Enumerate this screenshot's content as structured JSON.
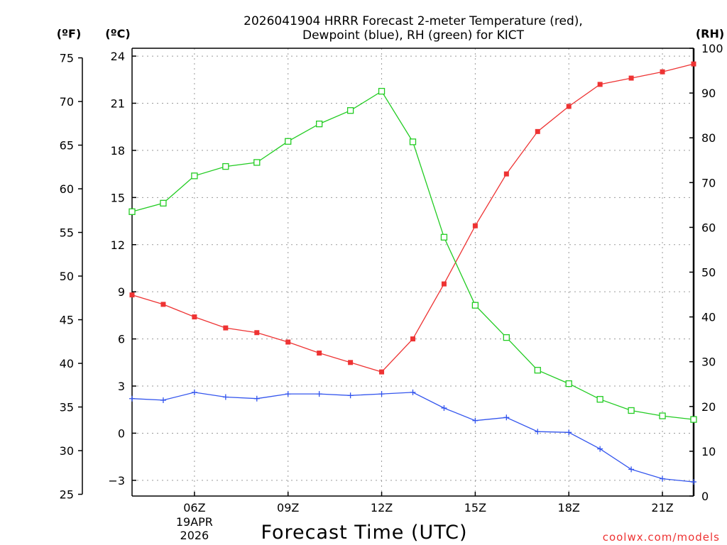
{
  "chart_data": {
    "type": "line",
    "title_lines": [
      "2026041904 HRRR Forecast 2-meter Temperature (red),",
      "Dewpoint (blue), RH (green) for KICT"
    ],
    "left_axis_f_label": "(ºF)",
    "left_axis_c_label": "(ºC)",
    "right_axis_label": "(RH)",
    "xlabel": "Forecast Time (UTC)",
    "watermark": "coolwx.com/models",
    "x_hours": [
      4,
      5,
      6,
      7,
      8,
      9,
      10,
      11,
      12,
      13,
      14,
      15,
      16,
      17,
      18,
      19,
      20,
      21,
      22
    ],
    "x_range": [
      4,
      22
    ],
    "x_ticks": [
      {
        "hour": 6,
        "label": "06Z"
      },
      {
        "hour": 9,
        "label": "09Z"
      },
      {
        "hour": 12,
        "label": "12Z"
      },
      {
        "hour": 15,
        "label": "15Z"
      },
      {
        "hour": 18,
        "label": "18Z"
      },
      {
        "hour": 21,
        "label": "21Z"
      }
    ],
    "date_label": [
      "19APR",
      "2026"
    ],
    "ylim_c": [
      -4,
      24.5
    ],
    "yticks_c": [
      "24",
      "21",
      "18",
      "15",
      "12",
      "9",
      "6",
      "3",
      "0",
      "−3"
    ],
    "yticks_c_values": [
      24,
      21,
      18,
      15,
      12,
      9,
      6,
      3,
      0,
      -3
    ],
    "yticks_f": [
      "75",
      "70",
      "65",
      "60",
      "55",
      "50",
      "45",
      "40",
      "35",
      "30",
      "25"
    ],
    "yticks_f_values": [
      75,
      70,
      65,
      60,
      55,
      50,
      45,
      40,
      35,
      30,
      25
    ],
    "ylim_rh": [
      0,
      100
    ],
    "yticks_rh": [
      "100",
      "90",
      "80",
      "70",
      "60",
      "50",
      "40",
      "30",
      "20",
      "10",
      "0"
    ],
    "yticks_rh_values": [
      100,
      90,
      80,
      70,
      60,
      50,
      40,
      30,
      20,
      10,
      0
    ],
    "series": [
      {
        "name": "Temperature",
        "color": "#ee3333",
        "units": "C",
        "marker": "filled-square",
        "values": [
          8.8,
          8.2,
          7.4,
          6.7,
          6.4,
          5.8,
          5.1,
          4.5,
          3.9,
          6.0,
          9.5,
          13.2,
          16.5,
          19.2,
          20.8,
          22.2,
          22.6,
          23.0,
          23.5
        ]
      },
      {
        "name": "Dewpoint",
        "color": "#3355ee",
        "units": "C",
        "marker": "plus",
        "values": [
          2.2,
          2.1,
          2.6,
          2.3,
          2.2,
          2.5,
          2.5,
          2.4,
          2.5,
          2.6,
          1.6,
          0.8,
          1.0,
          0.1,
          0.05,
          -1.0,
          -2.3,
          -2.9,
          -3.1
        ]
      },
      {
        "name": "RH",
        "color": "#22cc22",
        "units": "%",
        "marker": "open-square",
        "values": [
          63.5,
          65.4,
          71.5,
          73.6,
          74.5,
          79.2,
          83.1,
          86.1,
          90.4,
          79.1,
          57.8,
          42.6,
          35.4,
          28.1,
          25.1,
          21.6,
          19.1,
          17.9,
          17.1
        ]
      }
    ]
  }
}
